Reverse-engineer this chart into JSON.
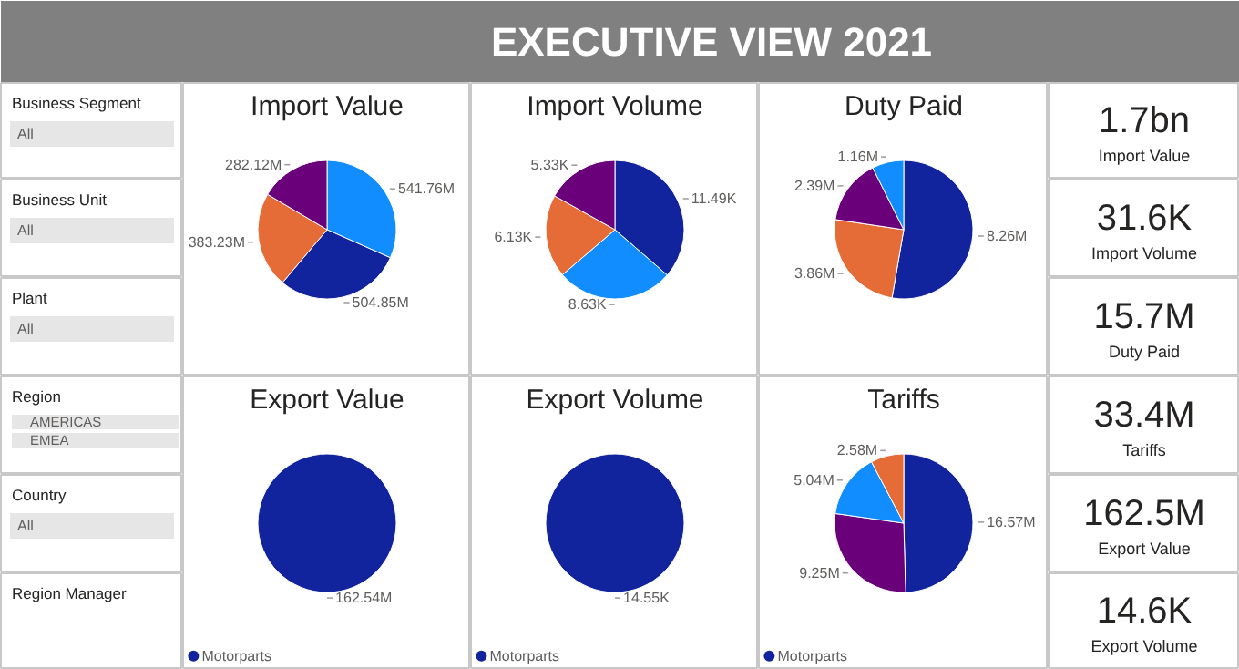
{
  "chart_data": [
    {
      "type": "other",
      "title": "EXECUTIVE VIEW 2021"
    },
    {
      "type": "other",
      "title": "Business Segment",
      "annotations": [
        "All"
      ]
    },
    {
      "type": "other",
      "title": "Business Unit",
      "annotations": [
        "All"
      ]
    },
    {
      "type": "other",
      "title": "Plant",
      "annotations": [
        "All"
      ]
    },
    {
      "type": "other",
      "title": "Region",
      "annotations": [
        "AMERICAS",
        "EMEA"
      ]
    },
    {
      "type": "other",
      "title": "Country",
      "annotations": [
        "All"
      ]
    },
    {
      "type": "other",
      "title": "Region Manager"
    },
    {
      "type": "pie",
      "title": "Import Value",
      "categories": [
        null,
        null,
        null,
        null
      ],
      "values": [
        541.76,
        504.85,
        383.23,
        282.12
      ],
      "value_labels": [
        "541.76M",
        "504.85M",
        "383.23M",
        "282.12M"
      ],
      "colors": [
        "#118dff",
        "#12239e",
        "#e66c37",
        "#6b007b"
      ]
    },
    {
      "type": "pie",
      "title": "Import Volume",
      "categories": [
        null,
        null,
        null,
        null
      ],
      "values": [
        11.49,
        8.63,
        6.13,
        5.33
      ],
      "value_labels": [
        "11.49K",
        "8.63K",
        "6.13K",
        "5.33K"
      ],
      "colors": [
        "#12239e",
        "#118dff",
        "#e66c37",
        "#6b007b"
      ]
    },
    {
      "type": "pie",
      "title": "Duty Paid",
      "categories": [
        null,
        null,
        null,
        null
      ],
      "values": [
        8.26,
        3.86,
        2.39,
        1.16
      ],
      "value_labels": [
        "8.26M",
        "3.86M",
        "2.39M",
        "1.16M"
      ],
      "colors": [
        "#12239e",
        "#e66c37",
        "#6b007b",
        "#118dff"
      ]
    },
    {
      "type": "pie",
      "title": "Export Value",
      "categories": [
        "Motorparts"
      ],
      "values": [
        162.54
      ],
      "value_labels": [
        "162.54M"
      ],
      "colors": [
        "#12239e"
      ],
      "legend": "bottom"
    },
    {
      "type": "pie",
      "title": "Export Volume",
      "categories": [
        "Motorparts"
      ],
      "values": [
        14.55
      ],
      "value_labels": [
        "14.55K"
      ],
      "colors": [
        "#12239e"
      ],
      "legend": "bottom"
    },
    {
      "type": "pie",
      "title": "Tariffs",
      "categories": [
        "Motorparts",
        null,
        null,
        null
      ],
      "values": [
        16.57,
        9.25,
        5.04,
        2.58
      ],
      "value_labels": [
        "16.57M",
        "9.25M",
        "5.04M",
        "2.58M"
      ],
      "colors": [
        "#12239e",
        "#6b007b",
        "#118dff",
        "#e66c37"
      ],
      "legend": "bottom"
    },
    {
      "type": "other",
      "title": "Import Value",
      "annotations": [
        "1.7bn"
      ]
    },
    {
      "type": "other",
      "title": "Import Volume",
      "annotations": [
        "31.6K"
      ]
    },
    {
      "type": "other",
      "title": "Duty Paid",
      "annotations": [
        "15.7M"
      ]
    },
    {
      "type": "other",
      "title": "Tariffs",
      "annotations": [
        "33.4M"
      ]
    },
    {
      "type": "other",
      "title": "Export Value",
      "annotations": [
        "162.5M"
      ]
    },
    {
      "type": "other",
      "title": "Export Volume",
      "annotations": [
        "14.6K"
      ]
    }
  ]
}
